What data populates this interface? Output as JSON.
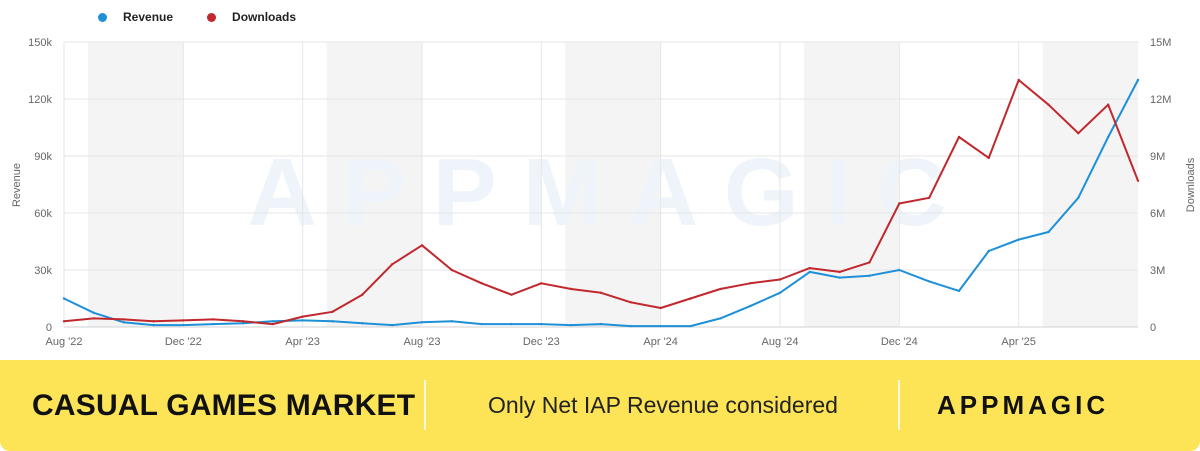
{
  "chart_data": {
    "type": "line",
    "x": [
      "Aug '22",
      "Sep '22",
      "Oct '22",
      "Nov '22",
      "Dec '22",
      "Jan '23",
      "Feb '23",
      "Mar '23",
      "Apr '23",
      "May '23",
      "Jun '23",
      "Jul '23",
      "Aug '23",
      "Sep '23",
      "Oct '23",
      "Nov '23",
      "Dec '23",
      "Jan '24",
      "Feb '24",
      "Mar '24",
      "Apr '24",
      "May '24",
      "Jun '24",
      "Jul '24",
      "Aug '24",
      "Sep '24",
      "Oct '24",
      "Nov '24",
      "Dec '24",
      "Jan '25",
      "Feb '25",
      "Mar '25",
      "Apr '25",
      "May '25",
      "Jun '25",
      "Jul '25",
      "Aug '25"
    ],
    "x_tick_labels": [
      "Aug '22",
      "Dec '22",
      "Apr '23",
      "Aug '23",
      "Dec '23",
      "Apr '24",
      "Aug '24",
      "Dec '24",
      "Apr '25"
    ],
    "series": [
      {
        "name": "Revenue",
        "axis": "left",
        "color": "#1e90d8",
        "values": [
          15000,
          7500,
          2500,
          1000,
          1000,
          1500,
          2000,
          3000,
          3500,
          3000,
          2000,
          1000,
          2500,
          3000,
          1500,
          1500,
          1500,
          1000,
          1500,
          500,
          500,
          500,
          4500,
          11000,
          18000,
          29000,
          26000,
          27000,
          30000,
          24000,
          19000,
          40000,
          46000,
          50000,
          68000,
          100000,
          130000
        ]
      },
      {
        "name": "Downloads",
        "axis": "right",
        "color": "#c0282d",
        "values": [
          300000,
          450000,
          400000,
          300000,
          350000,
          400000,
          300000,
          150000,
          550000,
          800000,
          1700000,
          3300000,
          4300000,
          3000000,
          2300000,
          1700000,
          2300000,
          2000000,
          1800000,
          1300000,
          1000000,
          1500000,
          2000000,
          2300000,
          2500000,
          3100000,
          2900000,
          3400000,
          6500000,
          6800000,
          10000000,
          8900000,
          13000000,
          11700000,
          10200000,
          11700000,
          7700000
        ]
      }
    ],
    "ylabel_left": "Revenue",
    "ylabel_right": "Downloads",
    "ylim_left": [
      0,
      150000
    ],
    "ylim_right": [
      0,
      15000000
    ],
    "y_ticks_left": [
      "0",
      "30k",
      "60k",
      "90k",
      "120k",
      "150k"
    ],
    "y_ticks_right": [
      "0",
      "3M",
      "6M",
      "9M",
      "12M",
      "15M"
    ],
    "grid": true,
    "legend_position": "top-left",
    "watermark": "APPMAGIC"
  },
  "banner": {
    "title": "CASUAL GAMES MARKET",
    "note": "Only Net IAP Revenue considered",
    "logo": "APPMAGIC",
    "color": "#fde456"
  }
}
